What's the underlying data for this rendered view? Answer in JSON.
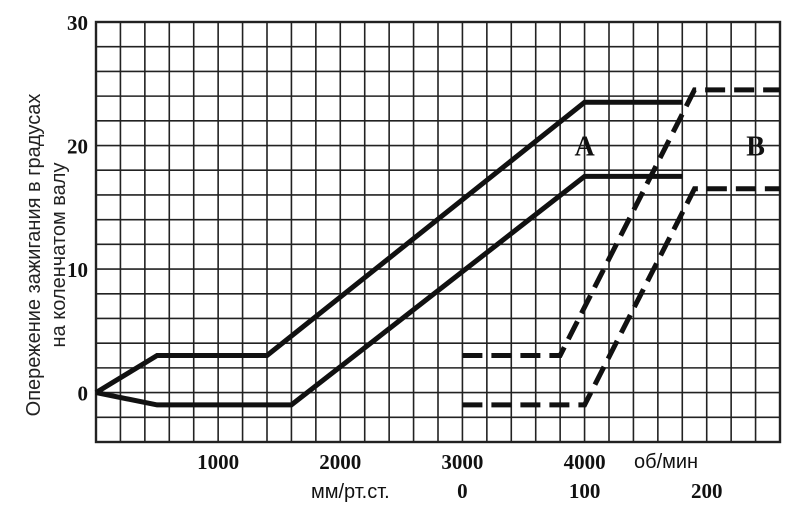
{
  "chart_data": {
    "type": "line",
    "title": "",
    "ylabel_lines": [
      "Опережение зажигания в градусах",
      "на коленчатом валу"
    ],
    "ylim": [
      -4,
      30
    ],
    "y_ticks": [
      "0",
      "10",
      "20",
      "30"
    ],
    "x_rpm": {
      "unit": "об/мин",
      "range": [
        0,
        5600
      ],
      "ticks": [
        "1000",
        "2000",
        "3000",
        "4000"
      ]
    },
    "x_vacuum": {
      "unit": "мм/рт.ст.",
      "range": [
        -300,
        260
      ],
      "ticks": [
        "0",
        "100",
        "200"
      ]
    },
    "grid": true,
    "series": [
      {
        "group": "rpm",
        "style": "solid",
        "label": "A",
        "points": [
          [
            0,
            0
          ],
          [
            500,
            3
          ],
          [
            1400,
            3
          ],
          [
            4000,
            23.5
          ],
          [
            4800,
            23.5
          ]
        ]
      },
      {
        "group": "rpm",
        "style": "solid",
        "points": [
          [
            0,
            0
          ],
          [
            500,
            -1
          ],
          [
            1600,
            -1
          ],
          [
            4000,
            17.5
          ],
          [
            4800,
            17.5
          ]
        ]
      },
      {
        "group": "vacuum",
        "style": "dashed",
        "label": "B",
        "points": [
          [
            0,
            3
          ],
          [
            80,
            3
          ],
          [
            190,
            24.5
          ],
          [
            260,
            24.5
          ]
        ]
      },
      {
        "group": "vacuum",
        "style": "dashed",
        "points": [
          [
            0,
            -1
          ],
          [
            100,
            -1
          ],
          [
            190,
            16.5
          ],
          [
            260,
            16.5
          ]
        ]
      }
    ],
    "labels": [
      {
        "text": "A",
        "group": "rpm",
        "x": 4000,
        "y": 20
      },
      {
        "text": "B",
        "group": "vacuum",
        "x": 240,
        "y": 20
      }
    ],
    "colors": {
      "line": "#111111",
      "grid": "#222222"
    }
  }
}
